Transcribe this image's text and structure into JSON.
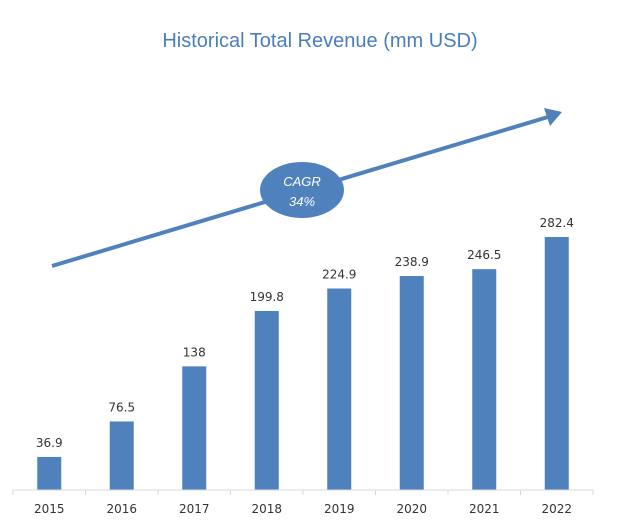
{
  "chart_data": {
    "type": "bar",
    "title": "Historical Total Revenue (mm USD)",
    "xlabel": "",
    "ylabel": "",
    "categories": [
      "2015",
      "2016",
      "2017",
      "2018",
      "2019",
      "2020",
      "2021",
      "2022"
    ],
    "values": [
      36.9,
      76.5,
      138,
      199.8,
      224.9,
      238.9,
      246.5,
      282.4
    ],
    "value_labels": [
      "36.9",
      "76.5",
      "138",
      "199.8",
      "224.9",
      "238.9",
      "246.5",
      "282.4"
    ],
    "ylim": [
      0,
      282.4
    ],
    "grid": false,
    "bar_color": "#4f81bd",
    "annotation": {
      "line1": "CAGR",
      "line2": "34%",
      "shape": "ellipse on upward trend arrow"
    }
  }
}
